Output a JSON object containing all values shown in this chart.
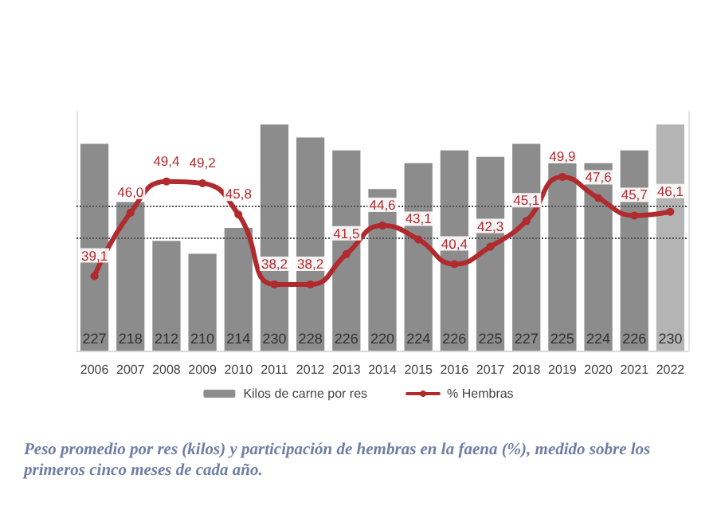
{
  "chart_data": {
    "type": "bar",
    "categories": [
      "2006",
      "2007",
      "2008",
      "2009",
      "2010",
      "2011",
      "2012",
      "2013",
      "2014",
      "2015",
      "2016",
      "2017",
      "2018",
      "2019",
      "2020",
      "2021",
      "2022"
    ],
    "series": [
      {
        "name": "Kilos de carne por res",
        "colors": [
          "#8c8c8c",
          "#8c8c8c",
          "#8c8c8c",
          "#8c8c8c",
          "#8c8c8c",
          "#8c8c8c",
          "#8c8c8c",
          "#8c8c8c",
          "#8c8c8c",
          "#8c8c8c",
          "#8c8c8c",
          "#8c8c8c",
          "#8c8c8c",
          "#8c8c8c",
          "#8c8c8c",
          "#8c8c8c",
          "#b4b4b4"
        ],
        "values": [
          227,
          218,
          212,
          210,
          214,
          230,
          228,
          226,
          220,
          224,
          226,
          225,
          227,
          225,
          224,
          226,
          230
        ],
        "value_labels": [
          "227",
          "218",
          "212",
          "210",
          "214",
          "230",
          "228",
          "226",
          "220",
          "224",
          "226",
          "225",
          "227",
          "225",
          "224",
          "226",
          "230"
        ]
      },
      {
        "name": "% Hembras",
        "type": "line",
        "axis": "y2",
        "color": "#b02a2e",
        "values": [
          39.1,
          46.0,
          49.4,
          49.2,
          45.8,
          38.2,
          38.2,
          41.5,
          44.6,
          43.1,
          40.4,
          42.3,
          45.1,
          49.9,
          47.6,
          45.7,
          46.1
        ],
        "value_labels": [
          "39,1",
          "46,0",
          "49,4",
          "49,2",
          "45,8",
          "38,2",
          "38,2",
          "41,5",
          "44,6",
          "43,1",
          "40,4",
          "42,3",
          "45,1",
          "49,9",
          "47,6",
          "45,7",
          "46,1"
        ]
      }
    ],
    "ylim": [
      195,
      232
    ],
    "y2lim": [
      31,
      57
    ],
    "tick_labels": "x",
    "grid": false,
    "legend": "bottom",
    "marker": "circle",
    "ref_lines": [
      {
        "axis": "y2",
        "value": 46.8,
        "color": "#555555",
        "line_style": "dotted"
      },
      {
        "axis": "y2",
        "value": 43.2,
        "color": "#555555",
        "line_style": "dotted"
      }
    ],
    "annotations": [
      "Peso promedio por res (kilos) y participación de hembras en la faena (%), medido sobre los primeros cinco meses de cada año."
    ]
  }
}
